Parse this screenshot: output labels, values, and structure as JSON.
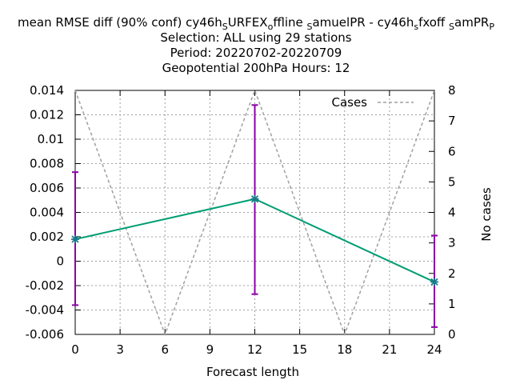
{
  "chart_data": {
    "type": "line",
    "title_lines": [
      "mean RMSE diff (90% conf) cy46h_{S}URFEX_{o}ffline_{S}amuelPR - cy46h_{s}fxoff_{S}amPR_{P}",
      "Selection: ALL using    29 stations",
      "Period: 20220702-20220709",
      "Geopotential 200hPa   Hours:  12"
    ],
    "title_parts": [
      {
        "t": "mean RMSE diff (90% conf) cy46h"
      },
      {
        "t": "S",
        "sub": true
      },
      {
        "t": "URFEX"
      },
      {
        "t": "o",
        "sub": true
      },
      {
        "t": "ffline "
      },
      {
        "t": "S",
        "sub": true
      },
      {
        "t": "amuelPR - cy46h"
      },
      {
        "t": "s",
        "sub": true
      },
      {
        "t": "fxoff "
      },
      {
        "t": "S",
        "sub": true
      },
      {
        "t": "amPR"
      },
      {
        "t": "P",
        "sub": true
      }
    ],
    "xlabel": "Forecast length",
    "y2label": "No cases",
    "x_ticks": [
      0,
      3,
      6,
      9,
      12,
      15,
      18,
      21,
      24
    ],
    "y_ticks": [
      -0.006,
      -0.004,
      -0.002,
      0,
      0.002,
      0.004,
      0.006,
      0.008,
      0.01,
      0.012,
      0.014
    ],
    "y_tick_labels": [
      "-0.006",
      "-0.004",
      "-0.002",
      "0",
      "0.002",
      "0.004",
      "0.006",
      "0.008",
      "0.01",
      "0.012",
      "0.014"
    ],
    "y2_ticks": [
      0,
      1,
      2,
      3,
      4,
      5,
      6,
      7,
      8
    ],
    "xlim": [
      0,
      24
    ],
    "ylim": [
      -0.006,
      0.014
    ],
    "y2lim": [
      0,
      8
    ],
    "grid": true,
    "legend_position": "top-right",
    "series": [
      {
        "name": "",
        "axis": "y",
        "color": "#009e73",
        "marker_color": "#1a7a8a",
        "errorbar_color": "#8b00a8",
        "x": [
          0,
          12,
          24
        ],
        "y": [
          0.0018,
          0.0051,
          -0.0017
        ],
        "err_low": [
          -0.0036,
          -0.0027,
          -0.0054
        ],
        "err_high": [
          0.0073,
          0.0128,
          0.0021
        ]
      },
      {
        "name": "Cases",
        "axis": "y2",
        "color": "#a0a0a0",
        "dashed": true,
        "x": [
          0,
          6,
          12,
          18,
          24
        ],
        "y": [
          8,
          0,
          8,
          0,
          8
        ]
      }
    ]
  }
}
